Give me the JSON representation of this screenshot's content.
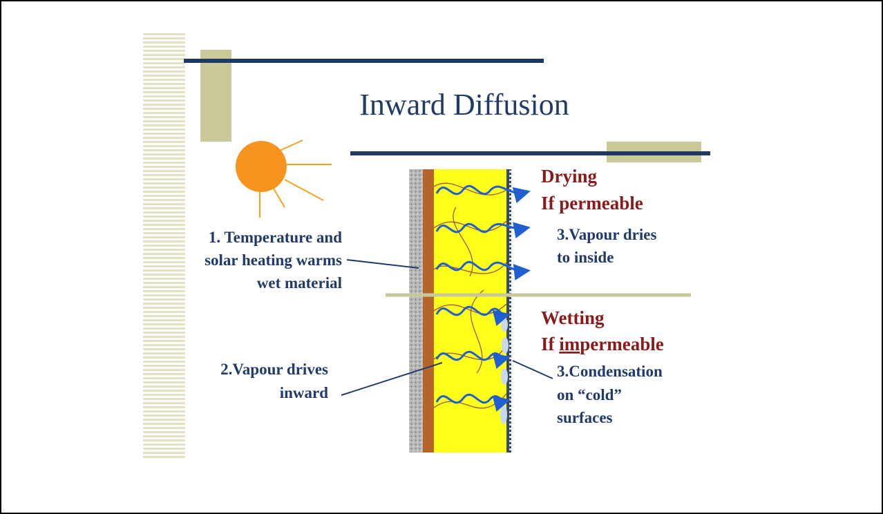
{
  "title": "Inward Diffusion",
  "drying": {
    "heading": "Drying",
    "condition": "If permeable",
    "note": [
      "3.Vapour dries",
      "to inside"
    ]
  },
  "wetting": {
    "heading": "Wetting",
    "condition": [
      "If ",
      "im",
      "permeable"
    ],
    "note": [
      "3.Condensation",
      "on “cold”",
      "surfaces"
    ]
  },
  "label_1": [
    "1. Temperature and",
    "solar heating warms",
    "wet material"
  ],
  "label_2": [
    "2.Vapour drives",
    "inward"
  ]
}
